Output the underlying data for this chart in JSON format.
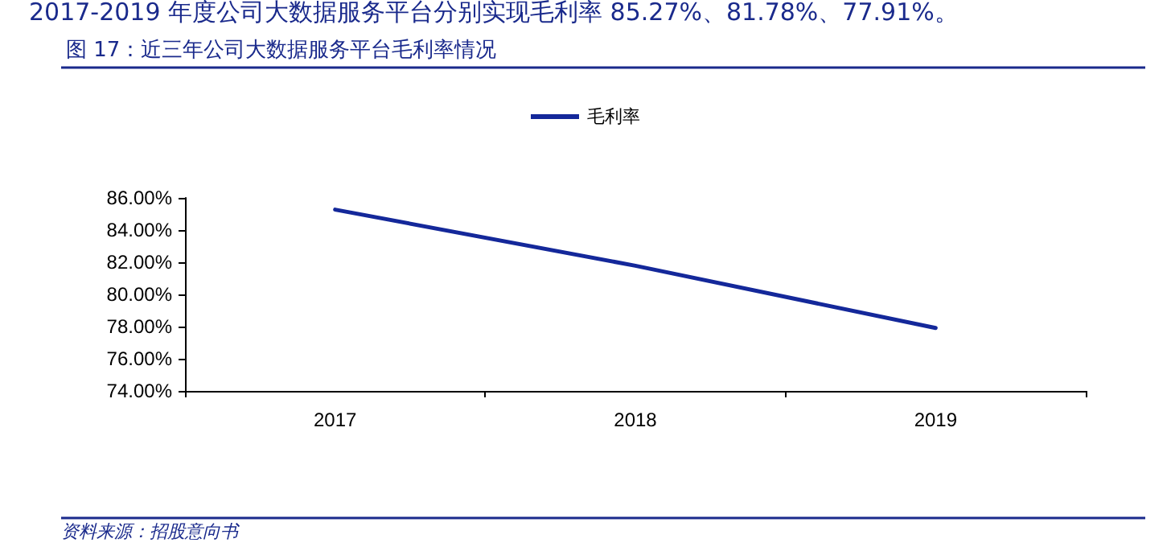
{
  "chart_data": {
    "type": "line",
    "title": "图 17：近三年公司大数据服务平台毛利率情况",
    "annotations": [
      "2017-2019 年度公司大数据服务平台分别实现毛利率 85.27%、81.78%、77.91%。",
      "资料来源：招股意向书"
    ],
    "categories": [
      "2017",
      "2018",
      "2019"
    ],
    "series": [
      {
        "name": "毛利率",
        "color": "#14289a",
        "values": [
          85.27,
          81.78,
          77.91
        ]
      }
    ],
    "ylim": [
      74,
      86
    ],
    "yticks": [
      {
        "value": 74,
        "label": "74.00%"
      },
      {
        "value": 76,
        "label": "76.00%"
      },
      {
        "value": 78,
        "label": "78.00%"
      },
      {
        "value": 80,
        "label": "80.00%"
      },
      {
        "value": 82,
        "label": "82.00%"
      },
      {
        "value": 84,
        "label": "84.00%"
      },
      {
        "value": 86,
        "label": "86.00%"
      }
    ],
    "legend": "top",
    "grid": false,
    "marker": "none",
    "line_style": "solid"
  }
}
